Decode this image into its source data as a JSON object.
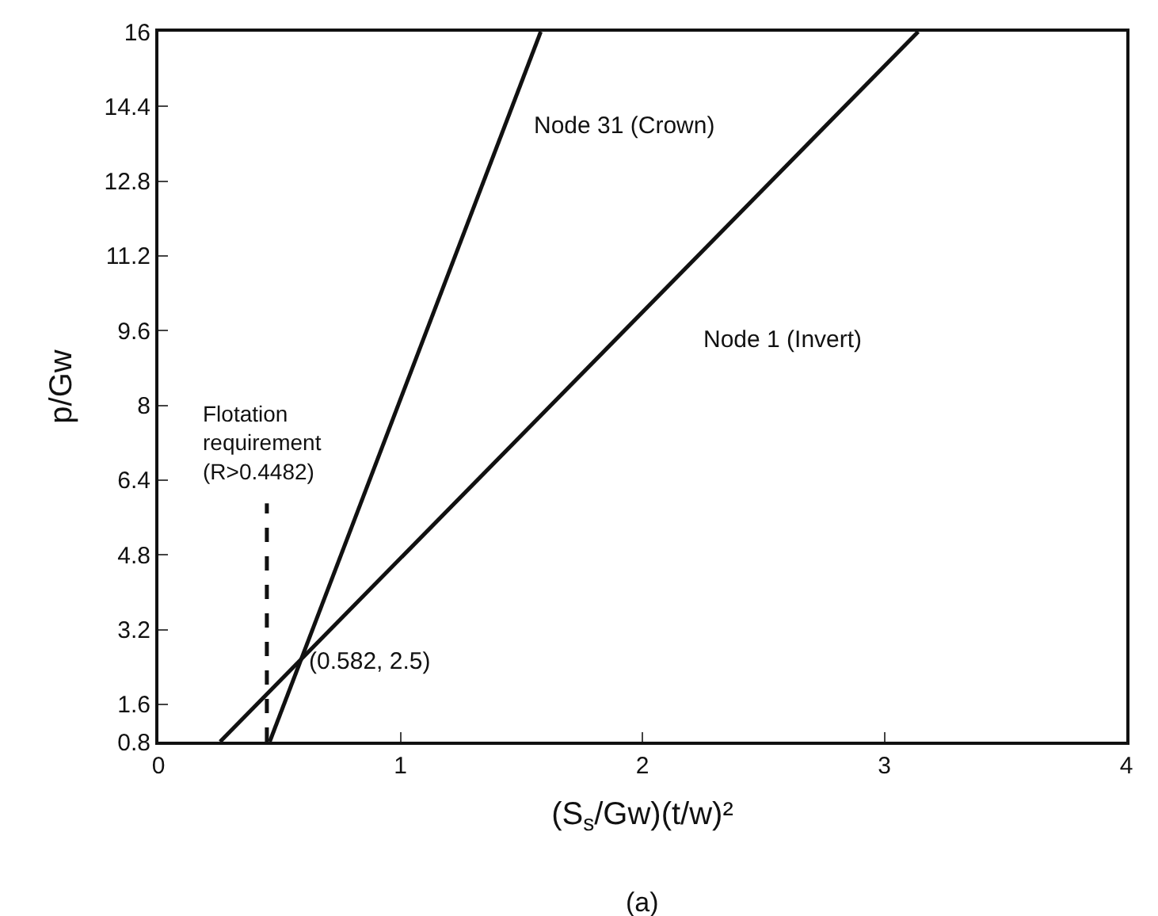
{
  "chart_data": {
    "type": "line",
    "xlabel": "(S$_{s}$/Gw)(t/w)²",
    "ylabel": "p/Gw",
    "series": [
      {
        "color": "#111111",
        "x": [
          0.46,
          1.58
        ],
        "values": [
          0.8,
          16
        ]
      },
      {
        "color": "#111111",
        "x": [
          0.255,
          3.14
        ],
        "values": [
          0.8,
          16
        ]
      },
      {
        "color": "#111111",
        "x": [
          0.4482,
          0.4482
        ],
        "values": [
          0.8,
          5.9
        ],
        "line_style": "dashed"
      }
    ],
    "xlim": [
      0,
      4
    ],
    "xticks": [
      0,
      1,
      2,
      3,
      4
    ],
    "ylim": [
      0.8,
      16
    ],
    "yticks": [
      0.8,
      1.6,
      3.2,
      4.8,
      6.4,
      8,
      9.6,
      11.2,
      12.8,
      14.4,
      16
    ],
    "marker": "none",
    "line_style": "solid",
    "annotations": [
      "Node 31 (Crown)",
      "Node 1 (Invert)",
      "Flotation\nrequirement\n(R>0.4482)",
      {
        "text": "(0.582, 2.5)",
        "x": 0.582,
        "y": 2.5
      },
      "(a)"
    ]
  }
}
